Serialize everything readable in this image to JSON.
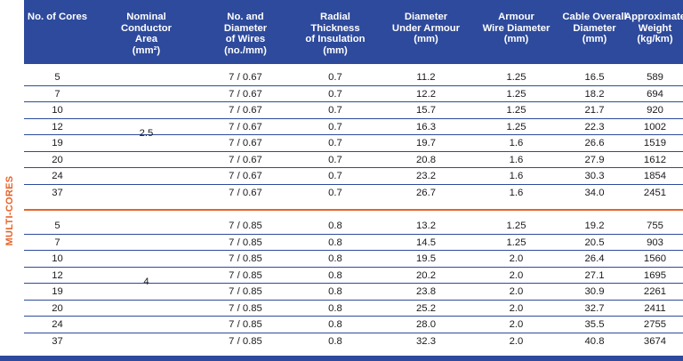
{
  "side_label": "MULTI-CORES",
  "headers": {
    "cores": "No. of Cores",
    "area": "Nominal\nConductor\nArea\n(mm²)",
    "wires": "No. and\nDiameter\nof  Wires\n(no./mm)",
    "insulation": "Radial\nThickness\nof Insulation\n(mm)",
    "diam_armour": "Diameter\nUnder Armour\n(mm)",
    "armour_wire": "Armour\nWire Diameter\n(mm)",
    "overall": "Cable Overall\nDiameter\n(mm)",
    "weight": "Approximate\nWeight\n(kg/km)"
  },
  "groups": [
    {
      "area": "2.5",
      "rows": [
        [
          "5",
          "7 / 0.67",
          "0.7",
          "11.2",
          "1.25",
          "16.5",
          "589"
        ],
        [
          "7",
          "7 / 0.67",
          "0.7",
          "12.2",
          "1.25",
          "18.2",
          "694"
        ],
        [
          "10",
          "7 / 0.67",
          "0.7",
          "15.7",
          "1.25",
          "21.7",
          "920"
        ],
        [
          "12",
          "7 / 0.67",
          "0.7",
          "16.3",
          "1.25",
          "22.3",
          "1002"
        ],
        [
          "19",
          "7 / 0.67",
          "0.7",
          "19.7",
          "1.6",
          "26.6",
          "1519"
        ],
        [
          "20",
          "7 / 0.67",
          "0.7",
          "20.8",
          "1.6",
          "27.9",
          "1612"
        ],
        [
          "24",
          "7 / 0.67",
          "0.7",
          "23.2",
          "1.6",
          "30.3",
          "1854"
        ],
        [
          "37",
          "7 / 0.67",
          "0.7",
          "26.7",
          "1.6",
          "34.0",
          "2451"
        ]
      ]
    },
    {
      "area": "4",
      "rows": [
        [
          "5",
          "7 / 0.85",
          "0.8",
          "13.2",
          "1.25",
          "19.2",
          "755"
        ],
        [
          "7",
          "7 / 0.85",
          "0.8",
          "14.5",
          "1.25",
          "20.5",
          "903"
        ],
        [
          "10",
          "7 / 0.85",
          "0.8",
          "19.5",
          "2.0",
          "26.4",
          "1560"
        ],
        [
          "12",
          "7 / 0.85",
          "0.8",
          "20.2",
          "2.0",
          "27.1",
          "1695"
        ],
        [
          "19",
          "7 / 0.85",
          "0.8",
          "23.8",
          "2.0",
          "30.9",
          "2261"
        ],
        [
          "20",
          "7 / 0.85",
          "0.8",
          "25.2",
          "2.0",
          "32.7",
          "2411"
        ],
        [
          "24",
          "7 / 0.85",
          "0.8",
          "28.0",
          "2.0",
          "35.5",
          "2755"
        ],
        [
          "37",
          "7 / 0.85",
          "0.8",
          "32.3",
          "2.0",
          "40.8",
          "3674"
        ]
      ]
    }
  ],
  "colors": {
    "header_bg": "#2e4a9c",
    "accent": "#e8632b",
    "rule": "#2e4a9c"
  }
}
